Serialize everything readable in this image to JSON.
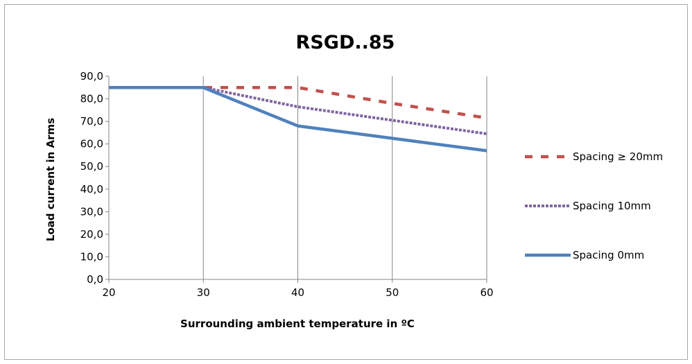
{
  "chart_data": {
    "type": "line",
    "title": "RSGD..85",
    "xlabel": "Surrounding ambient temperature in ºC",
    "ylabel": "Load current in Arms",
    "x": [
      20,
      30,
      40,
      50,
      60
    ],
    "xlim": [
      20,
      60
    ],
    "ylim": [
      0,
      90
    ],
    "x_ticks": [
      "20",
      "30",
      "40",
      "50",
      "60"
    ],
    "y_ticks": [
      "0,0",
      "10,0",
      "20,0",
      "30,0",
      "40,0",
      "50,0",
      "60,0",
      "70,0",
      "80,0",
      "90,0"
    ],
    "grid": "vertical major gridlines",
    "legend_position": "right",
    "series": [
      {
        "name": "Spacing ≥ 20mm",
        "color": "#c0504d",
        "style": "dashed",
        "values": [
          85,
          85,
          85,
          78,
          71.5
        ]
      },
      {
        "name": "Spacing 10mm",
        "color": "#8064a2",
        "style": "dotted",
        "values": [
          85,
          85,
          76.5,
          70.5,
          64.5
        ]
      },
      {
        "name": "Spacing 0mm",
        "color": "#4f81bd",
        "style": "solid",
        "values": [
          85,
          85,
          68,
          62.5,
          57
        ]
      }
    ]
  }
}
